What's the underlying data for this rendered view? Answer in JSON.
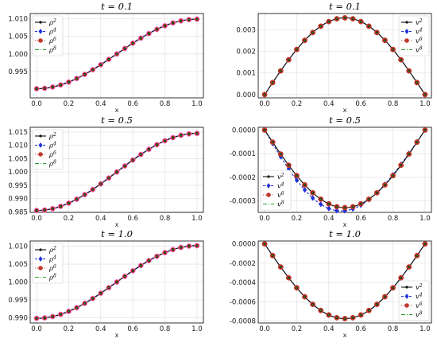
{
  "colors": {
    "s2": "#111111",
    "s4": "#1f2fd8",
    "s6": "#c0392b",
    "s8": "#2ca02c",
    "rho_highlight": "#ff69d9",
    "ticks": "#222222",
    "grid": "#dcdcdc"
  },
  "chart_data": [
    {
      "type": "line",
      "title": "t = 0.1",
      "xlabel": "x",
      "ylabel": "",
      "xlim": [
        -0.04,
        1.04
      ],
      "ylim": [
        0.9875,
        1.0115
      ],
      "xticks": [
        "0.0",
        "0.2",
        "0.4",
        "0.6",
        "0.8",
        "1.0"
      ],
      "yticks": [
        "0.995",
        "1.000",
        "1.005",
        "1.010"
      ],
      "ytick_values": [
        0.995,
        1.0,
        1.005,
        1.01
      ],
      "legend_position": "upper-left",
      "legend": [
        "ρ2",
        "ρ4",
        "ρ6",
        "ρ8"
      ],
      "form": "cos",
      "amplitude": 0.0099,
      "offset": 1.0,
      "grid": true,
      "series": [
        {
          "name": "ρ2",
          "style": "solid-dot"
        },
        {
          "name": "ρ4",
          "style": "dashed-diamond"
        },
        {
          "name": "ρ6",
          "style": "dotted-circle"
        },
        {
          "name": "ρ8",
          "style": "dashdot"
        }
      ]
    },
    {
      "type": "line",
      "title": "t = 0.1",
      "xlabel": "x",
      "ylabel": "",
      "xlim": [
        -0.04,
        1.04
      ],
      "ylim": [
        -0.00015,
        0.00375
      ],
      "xticks": [
        "0.0",
        "0.2",
        "0.4",
        "0.6",
        "0.8",
        "1.0"
      ],
      "yticks": [
        "0.000",
        "0.001",
        "0.002",
        "0.003"
      ],
      "ytick_values": [
        0,
        0.001,
        0.002,
        0.003
      ],
      "legend_position": "upper-right",
      "legend": [
        "v2",
        "v4",
        "v6",
        "v8"
      ],
      "form": "sin",
      "amplitude": 0.00355,
      "grid": true,
      "series": [
        {
          "name": "v2",
          "style": "solid-dot"
        },
        {
          "name": "v4",
          "style": "dashed-diamond"
        },
        {
          "name": "v6",
          "style": "dotted-circle"
        },
        {
          "name": "v8",
          "style": "dashdot"
        }
      ]
    },
    {
      "type": "line",
      "title": "t = 0.5",
      "xlabel": "x",
      "ylabel": "",
      "xlim": [
        -0.04,
        1.04
      ],
      "ylim": [
        0.9848,
        1.0168
      ],
      "xticks": [
        "0.0",
        "0.2",
        "0.4",
        "0.6",
        "0.8",
        "1.0"
      ],
      "yticks": [
        "0.985",
        "0.990",
        "0.995",
        "1.000",
        "1.005",
        "1.010",
        "1.015"
      ],
      "ytick_values": [
        0.985,
        0.99,
        0.995,
        1.0,
        1.005,
        1.01,
        1.015
      ],
      "legend_position": "upper-left",
      "legend": [
        "ρ2",
        "ρ4",
        "ρ6",
        "ρ8"
      ],
      "form": "cos",
      "amplitude": 0.0145,
      "offset": 1.0,
      "grid": true,
      "series": [
        {
          "name": "ρ2",
          "style": "solid-dot"
        },
        {
          "name": "ρ4",
          "style": "dashed-diamond"
        },
        {
          "name": "ρ6",
          "style": "dotted-circle"
        },
        {
          "name": "ρ8",
          "style": "dashdot"
        }
      ]
    },
    {
      "type": "line",
      "title": "t = 0.5",
      "xlabel": "x",
      "ylabel": "",
      "xlim": [
        -0.04,
        1.04
      ],
      "ylim": [
        -0.000348,
        1.15e-05
      ],
      "xticks": [
        "0.0",
        "0.2",
        "0.4",
        "0.6",
        "0.8",
        "1.0"
      ],
      "yticks": [
        "0.0000",
        "-0.0001",
        "-0.0002",
        "-0.0003"
      ],
      "ytick_values": [
        0,
        -0.0001,
        -0.0002,
        -0.0003
      ],
      "legend_position": "lower-left",
      "legend": [
        "v2",
        "v4",
        "v6",
        "v8"
      ],
      "form": "sin",
      "amplitude": -0.000328,
      "grid": true,
      "series": [
        {
          "name": "v2",
          "style": "solid-dot"
        },
        {
          "name": "v4",
          "style": "dashed-diamond"
        },
        {
          "name": "v6",
          "style": "dotted-circle"
        },
        {
          "name": "v8",
          "style": "dashdot"
        }
      ]
    },
    {
      "type": "line",
      "title": "t = 1.0",
      "xlabel": "x",
      "ylabel": "",
      "xlim": [
        -0.04,
        1.04
      ],
      "ylim": [
        0.9885,
        1.0115
      ],
      "xticks": [
        "0.0",
        "0.2",
        "0.4",
        "0.6",
        "0.8",
        "1.0"
      ],
      "yticks": [
        "0.990",
        "0.995",
        "1.000",
        "1.005",
        "1.010"
      ],
      "ytick_values": [
        0.99,
        0.995,
        1.0,
        1.005,
        1.01
      ],
      "legend_position": "upper-left",
      "legend": [
        "ρ2",
        "ρ4",
        "ρ6",
        "ρ8"
      ],
      "form": "cos",
      "amplitude": 0.0102,
      "offset": 1.0,
      "grid": true,
      "series": [
        {
          "name": "ρ2",
          "style": "solid-dot"
        },
        {
          "name": "ρ4",
          "style": "dashed-diamond"
        },
        {
          "name": "ρ6",
          "style": "dotted-circle"
        },
        {
          "name": "ρ8",
          "style": "dashdot"
        }
      ]
    },
    {
      "type": "line",
      "title": "t = 1.0",
      "xlabel": "x",
      "ylabel": "",
      "xlim": [
        -0.04,
        1.04
      ],
      "ylim": [
        -0.00082,
        3e-05
      ],
      "xticks": [
        "0.0",
        "0.2",
        "0.4",
        "0.6",
        "0.8",
        "1.0"
      ],
      "yticks": [
        "0.0000",
        "-0.0002",
        "-0.0004",
        "-0.0006",
        "-0.0008"
      ],
      "ytick_values": [
        0,
        -0.0002,
        -0.0004,
        -0.0006,
        -0.0008
      ],
      "legend_position": "lower-right",
      "legend": [
        "v2",
        "v4",
        "v6",
        "v8"
      ],
      "form": "sin",
      "amplitude": -0.000775,
      "grid": true,
      "series": [
        {
          "name": "v2",
          "style": "solid-dot"
        },
        {
          "name": "v4",
          "style": "dashed-diamond"
        },
        {
          "name": "v6",
          "style": "dotted-circle"
        },
        {
          "name": "v8",
          "style": "dashdot"
        }
      ]
    }
  ]
}
